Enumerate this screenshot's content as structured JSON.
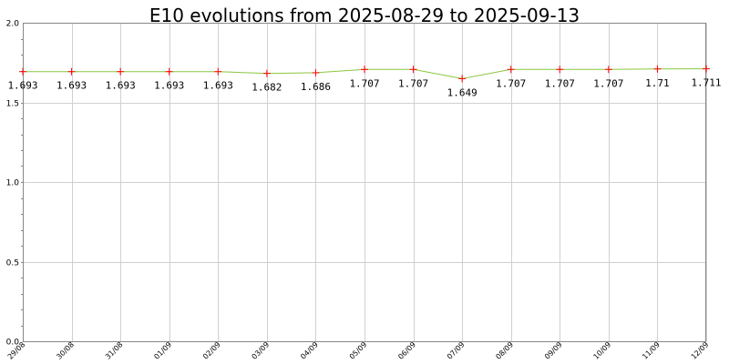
{
  "chart_data": {
    "type": "line",
    "title": "E10 evolutions from 2025-08-29 to 2025-09-13",
    "xlabel": "",
    "ylabel": "",
    "categories": [
      "29/08",
      "30/08",
      "31/08",
      "01/09",
      "02/09",
      "03/09",
      "04/09",
      "05/09",
      "06/09",
      "07/09",
      "08/09",
      "09/09",
      "10/09",
      "11/09",
      "12/09"
    ],
    "series": [
      {
        "values": [
          1.693,
          1.693,
          1.693,
          1.693,
          1.693,
          1.682,
          1.686,
          1.707,
          1.707,
          1.649,
          1.707,
          1.707,
          1.707,
          1.71,
          1.711
        ],
        "labels": [
          "1.693",
          "1.693",
          "1.693",
          "1.693",
          "1.693",
          "1.682",
          "1.686",
          "1.707",
          "1.707",
          "1.649",
          "1.707",
          "1.707",
          "1.707",
          "1.71",
          "1.711"
        ]
      }
    ],
    "ylim": [
      0,
      2.0
    ],
    "yticks": [
      "0.0",
      "0.5",
      "1.0",
      "1.5",
      "2.0"
    ],
    "grid": true,
    "legend": "none",
    "colors": {
      "line": "#8cc63f",
      "marker": "#ff0000",
      "grid": "#d0d0d0",
      "axis": "#888888"
    }
  }
}
